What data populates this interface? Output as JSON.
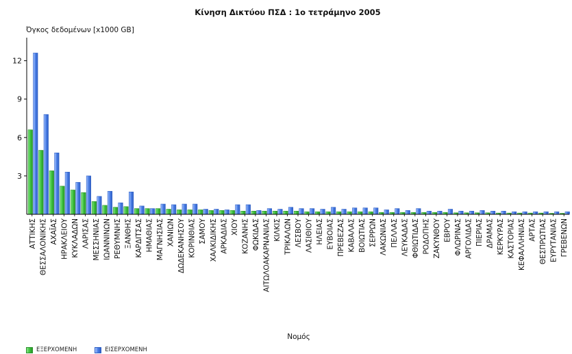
{
  "chart_data": {
    "type": "bar",
    "title": "Κίνηση Δικτύου  ΠΣΔ : 1ο τετράμηνο 2005",
    "ylabel": "Όγκος δεδομένων [x1000 GB]",
    "xlabel": "Νομός",
    "ylim": [
      0,
      13.8
    ],
    "yticks": [
      3,
      6,
      9,
      12
    ],
    "grid": false,
    "legend_position": "bottom-left",
    "categories": [
      "ΑΤΤΙΚΗΣ",
      "ΘΕΣΣΑΛΟΝΙΚΗΣ",
      "ΑΧΑΪΑΣ",
      "ΗΡΑΚΛΕΙΟΥ",
      "ΚΥΚΛΑΔΩΝ",
      "ΛΑΡΙΣΑΣ",
      "ΜΕΣΣΗΝΙΑΣ",
      "ΙΩΑΝΝΙΝΩΝ",
      "ΡΕΘΥΜΝΗΣ",
      "ΞΑΝΘΗΣ",
      "ΚΑΡΔΙΤΣΑΣ",
      "ΗΜΑΘΙΑΣ",
      "ΜΑΓΝΗΣΙΑΣ",
      "ΧΑΝΙΩΝ",
      "ΔΩΔΕΚΑΝΗΣΟΥ",
      "ΚΟΡΙΝΘΙΑΣ",
      "ΣΑΜΟΥ",
      "ΧΑΛΚΙΔΙΚΗΣ",
      "ΑΡΚΑΔΙΑΣ",
      "ΧΙΟΥ",
      "ΚΟΖΑΝΗΣ",
      "ΦΩΚΙΔΑΣ",
      "ΑΙΤΩΛΟΑΚΑΡΝΑΝΙΑΣ",
      "ΚΙΛΚΙΣ",
      "ΤΡΙΚΑΛΩΝ",
      "ΛΕΣΒΟΥ",
      "ΛΑΣΙΘΙΟΥ",
      "ΗΛΕΙΑΣ",
      "ΕΥΒΟΙΑΣ",
      "ΠΡΕΒΕΖΑΣ",
      "ΚΑΒΑΛΑΣ",
      "ΒΟΙΩΤΙΑΣ",
      "ΣΕΡΡΩΝ",
      "ΛΑΚΩΝΙΑΣ",
      "ΠΕΛΛΑΣ",
      "ΛΕΥΚΑΔΑΣ",
      "ΦΘΙΩΤΙΔΑΣ",
      "ΡΟΔΟΠΗΣ",
      "ΖΑΚΥΝΘΟΥ",
      "ΕΒΡΟΥ",
      "ΦΛΩΡΙΝΑΣ",
      "ΑΡΓΟΛΙΔΑΣ",
      "ΠΙΕΡΙΑΣ",
      "ΔΡΑΜΑΣ",
      "ΚΕΡΚΥΡΑΣ",
      "ΚΑΣΤΟΡΙΑΣ",
      "ΚΕΦΑΛΛΗΝΙΑΣ",
      "ΑΡΤΑΣ",
      "ΘΕΣΠΡΩΤΙΑΣ",
      "ΕΥΡΥΤΑΝΙΑΣ",
      "ΓΡΕΒΕΝΩΝ"
    ],
    "series": [
      {
        "name": "ΕΞΕΡΧΟΜΕΝΗ",
        "color": "#3ec23e",
        "values": [
          6.6,
          5.0,
          3.4,
          2.2,
          1.9,
          1.7,
          1.0,
          0.7,
          0.55,
          0.6,
          0.45,
          0.45,
          0.45,
          0.4,
          0.35,
          0.35,
          0.35,
          0.3,
          0.3,
          0.3,
          0.25,
          0.25,
          0.25,
          0.25,
          0.25,
          0.25,
          0.2,
          0.2,
          0.2,
          0.2,
          0.2,
          0.2,
          0.2,
          0.15,
          0.15,
          0.15,
          0.15,
          0.15,
          0.15,
          0.15,
          0.12,
          0.12,
          0.12,
          0.12,
          0.1,
          0.1,
          0.1,
          0.1,
          0.1,
          0.08,
          0.08
        ]
      },
      {
        "name": "ΕΙΣΕΡΧΟΜΕΝΗ",
        "color": "#4a7ee6",
        "values": [
          12.6,
          7.8,
          4.8,
          3.3,
          2.5,
          3.0,
          1.4,
          1.8,
          0.9,
          1.75,
          0.65,
          0.45,
          0.8,
          0.75,
          0.8,
          0.8,
          0.4,
          0.4,
          0.35,
          0.75,
          0.75,
          0.3,
          0.45,
          0.4,
          0.55,
          0.45,
          0.45,
          0.4,
          0.55,
          0.4,
          0.5,
          0.5,
          0.5,
          0.35,
          0.45,
          0.3,
          0.45,
          0.25,
          0.25,
          0.4,
          0.25,
          0.25,
          0.3,
          0.25,
          0.25,
          0.2,
          0.2,
          0.2,
          0.2,
          0.2,
          0.2
        ]
      }
    ]
  }
}
